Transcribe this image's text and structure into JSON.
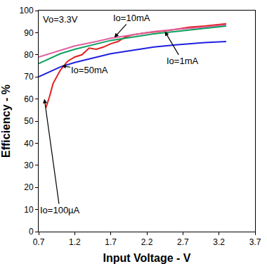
{
  "chart_data": {
    "type": "line",
    "x_label": "Input Voltage - V",
    "y_label": "Efficiency - %",
    "xlim": [
      0.7,
      3.7
    ],
    "xticks": [
      0.7,
      1.2,
      1.7,
      2.2,
      2.7,
      3.2,
      3.7
    ],
    "ylim": [
      0,
      100
    ],
    "yticks": [
      0,
      10,
      20,
      30,
      40,
      50,
      60,
      70,
      80,
      90,
      100
    ],
    "grid": false,
    "series": [
      {
        "name": "Io=100µA",
        "color": "#e02020",
        "x": [
          0.8,
          0.85,
          0.9,
          1.0,
          1.1,
          1.2,
          1.3,
          1.4,
          1.5,
          1.6,
          1.7,
          1.8,
          1.9,
          2.0,
          2.2,
          2.5,
          2.8,
          3.0,
          3.3
        ],
        "values": [
          56,
          61,
          67,
          73,
          77,
          79,
          80,
          83,
          82.5,
          83.5,
          85,
          86,
          88,
          89,
          90,
          91,
          92.5,
          93,
          94
        ]
      },
      {
        "name": "Io=10mA",
        "color": "#e060a0",
        "x": [
          0.7,
          1.0,
          1.2,
          1.5,
          1.7,
          2.0,
          2.3,
          2.6,
          3.0,
          3.3
        ],
        "values": [
          79,
          82,
          84,
          86,
          87.5,
          89,
          90.5,
          91.5,
          92.5,
          93.5
        ]
      },
      {
        "name": "Io=1mA",
        "color": "#10a060",
        "x": [
          0.7,
          1.0,
          1.2,
          1.5,
          1.7,
          2.0,
          2.3,
          2.6,
          3.0,
          3.3
        ],
        "values": [
          76,
          80.5,
          82.5,
          85,
          86.5,
          88,
          89.5,
          90.5,
          92,
          93
        ]
      },
      {
        "name": "Io=50mA",
        "color": "#2020e0",
        "x": [
          0.7,
          0.9,
          1.0,
          1.2,
          1.5,
          1.7,
          2.0,
          2.3,
          2.6,
          3.0,
          3.3
        ],
        "values": [
          70,
          73,
          74.5,
          76.5,
          79,
          80.5,
          82,
          83.5,
          84.5,
          85.5,
          86
        ]
      }
    ],
    "annotations": [
      {
        "text": "Vo=3.3V",
        "x": 0.74,
        "y": 96
      },
      {
        "text": "Io=10mA",
        "x": 1.75,
        "y": 87.8
      },
      {
        "text": "Io=1mA",
        "x": 2.45,
        "y": 90.5
      },
      {
        "text": "Io=50mA",
        "x": 1.02,
        "y": 75
      },
      {
        "text": "Io=100µA",
        "x": 0.78,
        "y": 60
      }
    ]
  }
}
